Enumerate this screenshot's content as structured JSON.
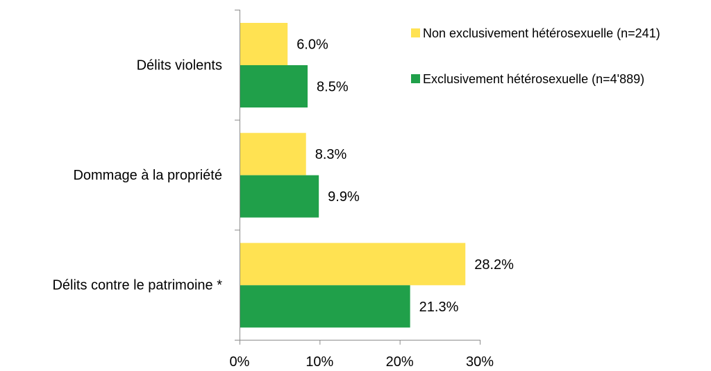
{
  "chart_data": {
    "type": "bar",
    "orientation": "horizontal",
    "categories": [
      "Délits violents",
      "Dommage à la propriété",
      "Délits contre le patrimoine *"
    ],
    "series": [
      {
        "name": "Non exclusivement hétérosexuelle (n=241)",
        "color": "#FFE252",
        "values": [
          6.0,
          8.3,
          28.2
        ],
        "labels": [
          "6.0%",
          "8.3%",
          "28.2%"
        ]
      },
      {
        "name": "Exclusivement hétérosexuelle (n=4'889)",
        "color": "#20A04A",
        "values": [
          8.5,
          9.9,
          21.3
        ],
        "labels": [
          "8.5%",
          "9.9%",
          "21.3%"
        ]
      }
    ],
    "xlim": [
      0,
      30
    ],
    "xticks": [
      0,
      10,
      20,
      30
    ],
    "xtick_labels": [
      "0%",
      "10%",
      "20%",
      "30%"
    ],
    "legend_position": "top-right",
    "grid": false
  }
}
